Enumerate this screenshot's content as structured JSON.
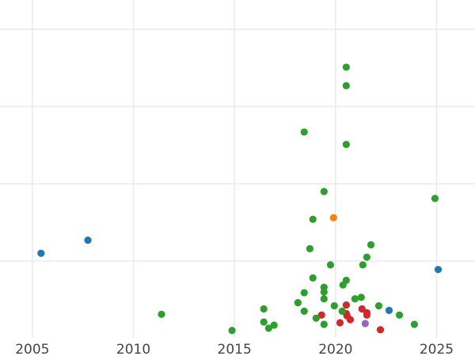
{
  "chart_data": {
    "type": "scatter",
    "title": "",
    "xlabel": "",
    "ylabel": "",
    "xlim": [
      2003.4,
      2026.9
    ],
    "ylim": [
      -0.23,
      4.38
    ],
    "grid": true,
    "x_ticks": [
      2005,
      2010,
      2015,
      2020,
      2025
    ],
    "x_tick_labels": [
      "2005",
      "2010",
      "2015",
      "2020",
      "2025"
    ],
    "y_gridlines": [
      1,
      2,
      3,
      4
    ],
    "y_tick_labels_shown": false,
    "series": [
      {
        "color": "#1f77b4",
        "points": [
          [
            2005.43,
            1.1
          ],
          [
            2007.75,
            1.27
          ],
          [
            2025.08,
            0.89
          ],
          [
            2022.65,
            0.36
          ]
        ]
      },
      {
        "color": "#ff7f0e",
        "points": [
          [
            2019.9,
            1.56
          ]
        ]
      },
      {
        "color": "#9467bd",
        "points": [
          [
            2021.47,
            0.19
          ]
        ]
      },
      {
        "color": "#d62728",
        "points": [
          [
            2019.31,
            0.3
          ],
          [
            2020.53,
            0.43
          ],
          [
            2020.53,
            0.32
          ],
          [
            2020.57,
            0.29
          ],
          [
            2020.73,
            0.24
          ],
          [
            2020.22,
            0.2
          ],
          [
            2021.31,
            0.38
          ],
          [
            2021.55,
            0.33
          ],
          [
            2021.55,
            0.3
          ],
          [
            2022.22,
            0.11
          ]
        ]
      },
      {
        "color": "#2ca02c",
        "points": [
          [
            2020.53,
            3.51
          ],
          [
            2020.53,
            3.27
          ],
          [
            2018.45,
            2.67
          ],
          [
            2020.53,
            2.51
          ],
          [
            2019.43,
            1.9
          ],
          [
            2024.92,
            1.81
          ],
          [
            2018.88,
            1.54
          ],
          [
            2021.75,
            1.21
          ],
          [
            2018.73,
            1.16
          ],
          [
            2021.55,
            1.05
          ],
          [
            2021.35,
            0.95
          ],
          [
            2019.75,
            0.95
          ],
          [
            2018.88,
            0.78
          ],
          [
            2020.53,
            0.75
          ],
          [
            2020.37,
            0.69
          ],
          [
            2019.43,
            0.66
          ],
          [
            2019.43,
            0.6
          ],
          [
            2018.45,
            0.59
          ],
          [
            2019.43,
            0.51
          ],
          [
            2021.27,
            0.53
          ],
          [
            2020.96,
            0.51
          ],
          [
            2018.14,
            0.46
          ],
          [
            2019.94,
            0.42
          ],
          [
            2018.45,
            0.35
          ],
          [
            2020.33,
            0.35
          ],
          [
            2022.14,
            0.42
          ],
          [
            2023.16,
            0.3
          ],
          [
            2019.04,
            0.26
          ],
          [
            2019.43,
            0.18
          ],
          [
            2023.9,
            0.18
          ],
          [
            2011.39,
            0.31
          ],
          [
            2014.88,
            0.1
          ],
          [
            2016.45,
            0.38
          ],
          [
            2016.45,
            0.21
          ],
          [
            2016.96,
            0.17
          ],
          [
            2016.69,
            0.13
          ]
        ]
      }
    ]
  }
}
